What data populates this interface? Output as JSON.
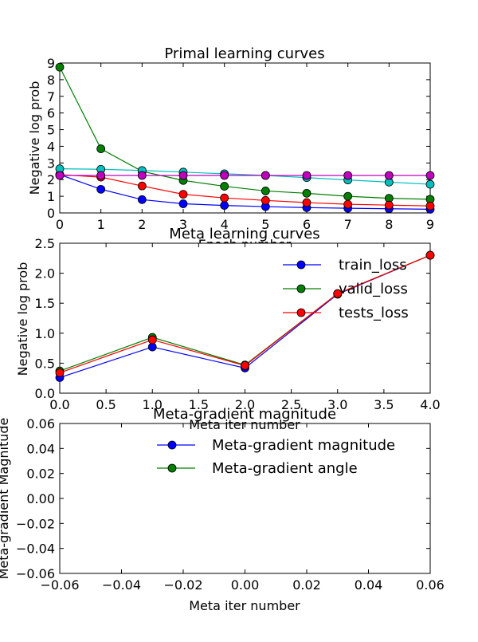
{
  "chart_data": [
    {
      "type": "line",
      "title": "Primal learning curves",
      "xlabel": "Epoch number",
      "ylabel": "Negative log prob",
      "xlim": [
        0,
        9
      ],
      "ylim": [
        0,
        9
      ],
      "xticks": [
        0,
        1,
        2,
        3,
        4,
        5,
        6,
        7,
        8,
        9
      ],
      "yticks": [
        0,
        1,
        2,
        3,
        4,
        5,
        6,
        7,
        8,
        9
      ],
      "x": [
        0,
        1,
        2,
        3,
        4,
        5,
        6,
        7,
        8,
        9
      ],
      "series": [
        {
          "color": "#0000ff",
          "values": [
            2.3,
            1.42,
            0.8,
            0.55,
            0.45,
            0.38,
            0.32,
            0.28,
            0.25,
            0.22
          ]
        },
        {
          "color": "#007f00",
          "values": [
            8.75,
            3.85,
            2.5,
            1.95,
            1.6,
            1.32,
            1.18,
            1.0,
            0.88,
            0.82
          ]
        },
        {
          "color": "#ff0000",
          "values": [
            2.3,
            2.15,
            1.62,
            1.12,
            0.9,
            0.75,
            0.62,
            0.52,
            0.47,
            0.42
          ]
        },
        {
          "color": "#00bfbf",
          "values": [
            2.65,
            2.62,
            2.55,
            2.45,
            2.35,
            2.25,
            2.12,
            1.98,
            1.85,
            1.72
          ]
        },
        {
          "color": "#bf00bf",
          "values": [
            2.25,
            2.25,
            2.25,
            2.25,
            2.25,
            2.25,
            2.25,
            2.25,
            2.25,
            2.25
          ]
        }
      ]
    },
    {
      "type": "line",
      "title": "Meta learning curves",
      "xlabel": "Meta iter number",
      "ylabel": "Negative log prob",
      "xlim": [
        0,
        4
      ],
      "ylim": [
        0,
        2.5
      ],
      "xticks": [
        "0.0",
        "0.5",
        "1.0",
        "1.5",
        "2.0",
        "2.5",
        "3.0",
        "3.5",
        "4.0"
      ],
      "yticks": [
        "0.0",
        "0.5",
        "1.0",
        "1.5",
        "2.0",
        "2.5"
      ],
      "x": [
        0,
        1,
        2,
        3,
        4
      ],
      "legend_position": "top-right",
      "series": [
        {
          "name": "train_loss",
          "color": "#0000ff",
          "values": [
            0.26,
            0.77,
            0.42,
            1.65,
            2.3
          ]
        },
        {
          "name": "valid_loss",
          "color": "#007f00",
          "values": [
            0.37,
            0.93,
            0.47,
            1.66,
            2.3
          ]
        },
        {
          "name": "tests_loss",
          "color": "#ff0000",
          "values": [
            0.34,
            0.89,
            0.46,
            1.66,
            2.3
          ]
        }
      ]
    },
    {
      "type": "line",
      "title": "Meta-gradient magnitude",
      "xlabel": "Meta iter number",
      "ylabel": "Meta-gradient Magnitude",
      "xlim": [
        -0.06,
        0.06
      ],
      "ylim": [
        -0.06,
        0.06
      ],
      "xticks": [
        "−0.06",
        "−0.04",
        "−0.02",
        "0.00",
        "0.02",
        "0.04",
        "0.06"
      ],
      "yticks": [
        "−0.06",
        "−0.04",
        "−0.02",
        "0.00",
        "0.02",
        "0.04",
        "0.06"
      ],
      "legend_position": "top-right",
      "series": [
        {
          "name": "Meta-gradient magnitude",
          "color": "#0000ff",
          "values": []
        },
        {
          "name": "Meta-gradient angle",
          "color": "#007f00",
          "values": []
        }
      ]
    }
  ]
}
